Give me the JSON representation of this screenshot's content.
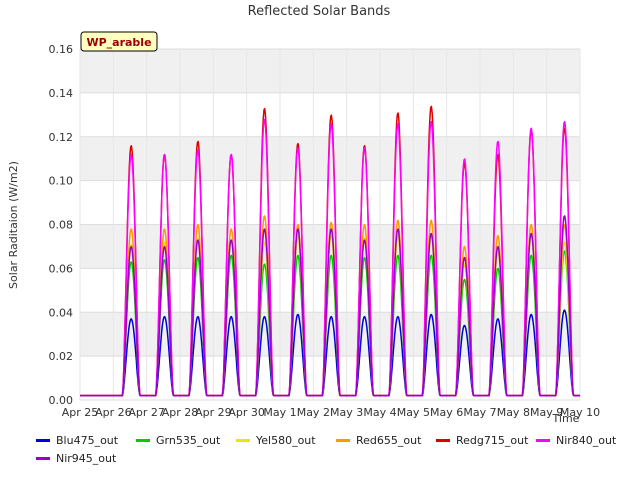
{
  "chart_data": {
    "type": "line",
    "title": "Reflected Solar Bands",
    "xlabel": "Time",
    "ylabel": "Solar Raditaion (W/m2)",
    "annotation": "WP_arable",
    "x_ticks": [
      "Apr 25",
      "Apr 26",
      "Apr 27",
      "Apr 28",
      "Apr 29",
      "Apr 30",
      "May 1",
      "May 2",
      "May 3",
      "May 4",
      "May 5",
      "May 6",
      "May 7",
      "May 8",
      "May 9",
      "May 10"
    ],
    "y_ticks": [
      "0.00",
      "0.02",
      "0.04",
      "0.06",
      "0.08",
      "0.10",
      "0.12",
      "0.14",
      "0.16"
    ],
    "xlim": [
      0,
      15
    ],
    "ylim": [
      0,
      0.16
    ],
    "grid": true,
    "legend_position": "bottom",
    "days": [
      "Apr 25",
      "Apr 26",
      "Apr 27",
      "Apr 28",
      "Apr 29",
      "Apr 30",
      "May 1",
      "May 2",
      "May 3",
      "May 4",
      "May 5",
      "May 6",
      "May 7",
      "May 8",
      "May 9"
    ],
    "series": [
      {
        "name": "Blu475_out",
        "color": "#0000dd",
        "daily_peak": [
          0.002,
          0.037,
          0.038,
          0.038,
          0.038,
          0.038,
          0.039,
          0.038,
          0.038,
          0.038,
          0.039,
          0.034,
          0.037,
          0.039,
          0.041
        ]
      },
      {
        "name": "Grn535_out",
        "color": "#00cc00",
        "daily_peak": [
          0.002,
          0.063,
          0.064,
          0.065,
          0.066,
          0.062,
          0.066,
          0.066,
          0.065,
          0.066,
          0.066,
          0.055,
          0.06,
          0.066,
          0.068
        ]
      },
      {
        "name": "Yel580_out",
        "color": "#e8e800",
        "daily_peak": [
          0.002,
          0.071,
          0.072,
          0.074,
          0.073,
          0.072,
          0.075,
          0.075,
          0.074,
          0.075,
          0.075,
          0.062,
          0.068,
          0.075,
          0.072
        ]
      },
      {
        "name": "Red655_out",
        "color": "#ff9900",
        "daily_peak": [
          0.002,
          0.078,
          0.078,
          0.08,
          0.078,
          0.084,
          0.08,
          0.081,
          0.08,
          0.082,
          0.082,
          0.07,
          0.075,
          0.08,
          0.08
        ]
      },
      {
        "name": "Redg715_out",
        "color": "#dd0000",
        "daily_peak": [
          0.002,
          0.116,
          0.112,
          0.118,
          0.112,
          0.133,
          0.117,
          0.13,
          0.116,
          0.131,
          0.134,
          0.108,
          0.112,
          0.123,
          0.124
        ]
      },
      {
        "name": "Nir840_out",
        "color": "#ff00ff",
        "daily_peak": [
          0.002,
          0.112,
          0.112,
          0.114,
          0.112,
          0.128,
          0.115,
          0.126,
          0.115,
          0.126,
          0.127,
          0.11,
          0.118,
          0.124,
          0.127
        ]
      },
      {
        "name": "Nir945_out",
        "color": "#9900cc",
        "daily_peak": [
          0.002,
          0.07,
          0.07,
          0.073,
          0.073,
          0.078,
          0.078,
          0.078,
          0.073,
          0.078,
          0.076,
          0.065,
          0.07,
          0.076,
          0.084
        ]
      }
    ]
  }
}
